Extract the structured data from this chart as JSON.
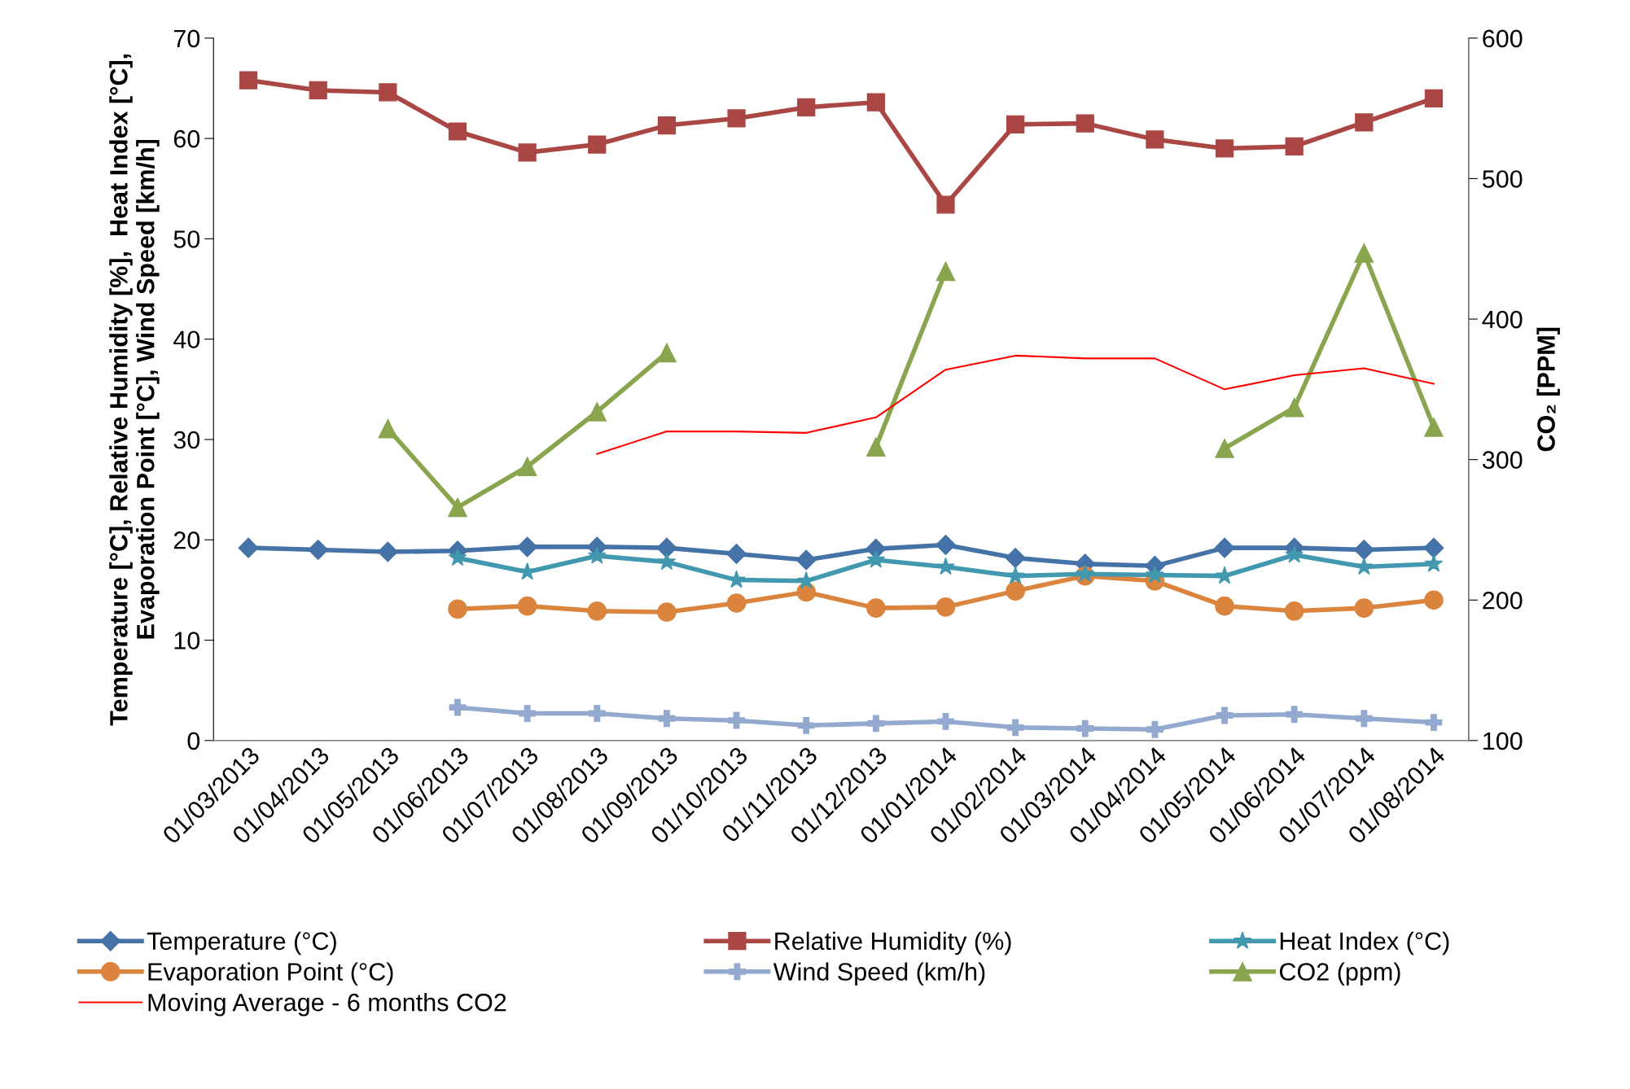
{
  "chart_data": {
    "type": "line",
    "ylabel": "Temperature [°C], Relative Humidity [%],  Heat Index [°C],\nEvaporation Point [°C], Wind Speed [km/h]",
    "y2label": "CO₂ [PPM]",
    "categories": [
      "01/03/2013",
      "01/04/2013",
      "01/05/2013",
      "01/06/2013",
      "01/07/2013",
      "01/08/2013",
      "01/09/2013",
      "01/10/2013",
      "01/11/2013",
      "01/12/2013",
      "01/01/2014",
      "01/02/2014",
      "01/03/2014",
      "01/04/2014",
      "01/05/2014",
      "01/06/2014",
      "01/07/2014",
      "01/08/2014"
    ],
    "ylim": [
      0,
      70
    ],
    "yticks": [
      0,
      10,
      20,
      30,
      40,
      50,
      60,
      70
    ],
    "y2lim": [
      100,
      600
    ],
    "y2ticks": [
      100,
      200,
      300,
      400,
      500,
      600
    ],
    "grid": false,
    "legend": "bottom",
    "line_style": "solid",
    "series": [
      {
        "name": "Temperature (°C)",
        "color": "#4572a7",
        "marker": "diamond",
        "values": [
          19.2,
          19.0,
          18.8,
          18.9,
          19.3,
          19.3,
          19.2,
          18.6,
          18.0,
          19.1,
          19.5,
          18.2,
          17.6,
          17.4,
          19.2,
          19.2,
          19.0,
          19.2
        ]
      },
      {
        "name": "Relative Humidity (%)",
        "color": "#aa4643",
        "marker": "square",
        "values": [
          65.8,
          64.8,
          64.6,
          60.7,
          58.6,
          59.4,
          61.3,
          62.0,
          63.1,
          63.6,
          53.4,
          61.4,
          61.5,
          59.9,
          59.0,
          59.2,
          61.6,
          64.0
        ]
      },
      {
        "name": "Heat Index (°C)",
        "color": "#4198af",
        "marker": "star",
        "values": [
          null,
          null,
          null,
          18.2,
          16.8,
          18.4,
          17.8,
          16.0,
          15.9,
          18.0,
          17.3,
          16.4,
          16.6,
          16.5,
          16.4,
          18.5,
          17.3,
          17.6
        ]
      },
      {
        "name": "Evaporation Point (°C)",
        "color": "#db843d",
        "marker": "circle",
        "values": [
          null,
          null,
          null,
          13.1,
          13.4,
          12.9,
          12.8,
          13.7,
          14.8,
          13.2,
          13.3,
          14.9,
          16.4,
          15.9,
          13.4,
          12.9,
          13.2,
          14.0
        ]
      },
      {
        "name": "Wind Speed (km/h)",
        "color": "#93a9cf",
        "marker": "cross",
        "values": [
          null,
          null,
          null,
          3.3,
          2.7,
          2.7,
          2.2,
          2.0,
          1.5,
          1.7,
          1.9,
          1.3,
          1.2,
          1.1,
          2.5,
          2.6,
          2.2,
          1.8
        ]
      },
      {
        "name": "CO2 (ppm)",
        "color": "#89a54e",
        "marker": "triangle",
        "axis": "y2",
        "values": [
          null,
          null,
          322,
          266,
          295,
          334,
          376,
          null,
          null,
          309,
          434,
          null,
          null,
          null,
          308,
          337,
          447,
          323
        ]
      },
      {
        "name": "Moving Average - 6 months CO2",
        "color": "#ff0000",
        "marker": "none",
        "axis": "y2",
        "values": [
          null,
          null,
          null,
          null,
          null,
          304,
          320,
          320,
          319,
          330,
          364,
          374,
          372,
          372,
          350,
          360,
          365,
          354
        ]
      }
    ]
  }
}
